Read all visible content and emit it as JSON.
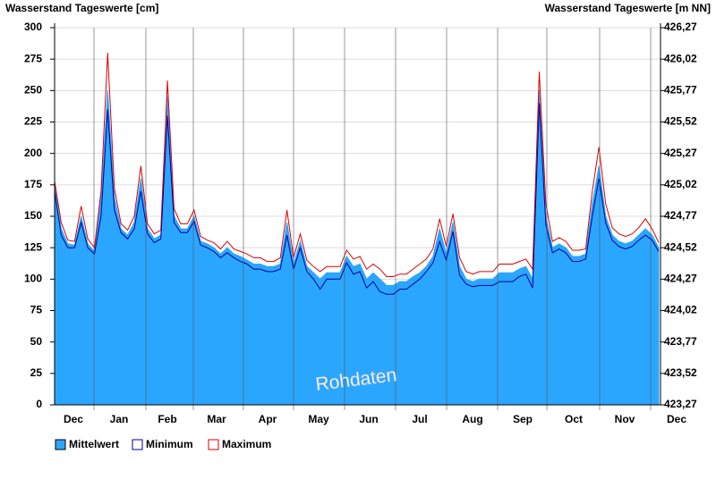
{
  "chart_data": {
    "type": "area",
    "title": "Wasserstand Tageswerte [cm]",
    "title_right": "Wasserstand Tageswerte [m NN]",
    "watermark": "Rohdaten",
    "months": [
      "Dec",
      "Jan",
      "Feb",
      "Mar",
      "Apr",
      "May",
      "Jun",
      "Jul",
      "Aug",
      "Sep",
      "Oct",
      "Nov",
      "Dec"
    ],
    "ylim": [
      0,
      300
    ],
    "yticks": [
      0,
      25,
      50,
      75,
      100,
      125,
      150,
      175,
      200,
      225,
      250,
      275,
      300
    ],
    "y2lim": [
      423.27,
      426.27
    ],
    "y2ticks": [
      {
        "value": 423.27,
        "label": "423,27"
      },
      {
        "value": 423.52,
        "label": "423,52"
      },
      {
        "value": 423.77,
        "label": "423,77"
      },
      {
        "value": 424.02,
        "label": "424,02"
      },
      {
        "value": 424.27,
        "label": "424,27"
      },
      {
        "value": 424.52,
        "label": "424,52"
      },
      {
        "value": 424.77,
        "label": "424,77"
      },
      {
        "value": 425.02,
        "label": "425,02"
      },
      {
        "value": 425.27,
        "label": "425,27"
      },
      {
        "value": 425.52,
        "label": "425,52"
      },
      {
        "value": 425.77,
        "label": "425,77"
      },
      {
        "value": 426.02,
        "label": "426,02"
      },
      {
        "value": 426.27,
        "label": "426,27"
      }
    ],
    "grid": true,
    "series": [
      {
        "name": "Mittelwert",
        "color": "#2ba6ff",
        "values": [
          175,
          140,
          128,
          127,
          150,
          128,
          122,
          165,
          250,
          165,
          140,
          135,
          145,
          180,
          140,
          132,
          135,
          245,
          150,
          140,
          140,
          150,
          130,
          128,
          125,
          120,
          125,
          120,
          118,
          115,
          112,
          112,
          110,
          110,
          112,
          145,
          112,
          130,
          110,
          105,
          100,
          105,
          105,
          105,
          118,
          110,
          112,
          100,
          105,
          100,
          95,
          95,
          98,
          98,
          102,
          105,
          110,
          118,
          140,
          120,
          145,
          110,
          100,
          98,
          100,
          100,
          100,
          105,
          105,
          105,
          108,
          110,
          100,
          250,
          150,
          125,
          128,
          125,
          118,
          118,
          120,
          160,
          190,
          150,
          135,
          130,
          128,
          130,
          135,
          140,
          135,
          125
        ]
      },
      {
        "name": "Minimum",
        "color": "#000099",
        "values": [
          170,
          135,
          125,
          125,
          145,
          125,
          120,
          150,
          235,
          155,
          137,
          132,
          140,
          170,
          136,
          129,
          132,
          230,
          145,
          137,
          137,
          146,
          127,
          125,
          122,
          117,
          121,
          117,
          114,
          112,
          108,
          108,
          106,
          106,
          108,
          135,
          108,
          125,
          106,
          100,
          92,
          100,
          100,
          100,
          113,
          104,
          106,
          93,
          98,
          90,
          88,
          88,
          92,
          92,
          96,
          100,
          106,
          113,
          130,
          115,
          138,
          103,
          96,
          94,
          95,
          95,
          95,
          98,
          98,
          98,
          102,
          104,
          93,
          240,
          143,
          121,
          124,
          121,
          114,
          114,
          116,
          150,
          180,
          145,
          131,
          126,
          124,
          126,
          131,
          135,
          131,
          122
        ]
      },
      {
        "name": "Maximum",
        "color": "#dd0000",
        "values": [
          178,
          145,
          131,
          130,
          158,
          132,
          125,
          170,
          280,
          172,
          144,
          139,
          150,
          190,
          144,
          136,
          139,
          258,
          156,
          144,
          144,
          155,
          134,
          131,
          129,
          124,
          130,
          124,
          122,
          120,
          117,
          117,
          114,
          114,
          117,
          155,
          117,
          136,
          115,
          110,
          106,
          110,
          110,
          110,
          123,
          116,
          118,
          108,
          112,
          108,
          102,
          102,
          104,
          104,
          108,
          112,
          116,
          124,
          148,
          126,
          152,
          117,
          106,
          104,
          106,
          106,
          106,
          112,
          112,
          112,
          114,
          116,
          108,
          265,
          160,
          130,
          133,
          130,
          123,
          123,
          124,
          170,
          205,
          160,
          141,
          136,
          134,
          136,
          141,
          148,
          140,
          129
        ]
      }
    ]
  }
}
